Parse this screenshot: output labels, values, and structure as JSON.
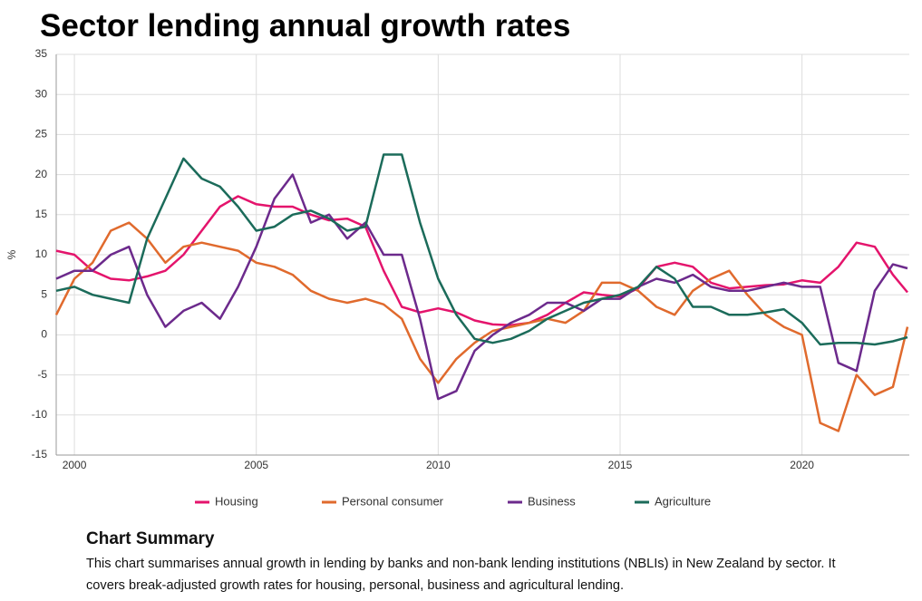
{
  "chart_data": {
    "type": "line",
    "title": "Sector lending annual growth rates",
    "ylabel": "%",
    "xlim": [
      1999.5,
      2022.95
    ],
    "xticks": [
      2000,
      2005,
      2010,
      2015,
      2020
    ],
    "ylim": [
      -15,
      35
    ],
    "yticks": [
      -15,
      -10,
      -5,
      0,
      5,
      10,
      15,
      20,
      25,
      30,
      35
    ],
    "grid": true,
    "legend": "bottom",
    "x": [
      1999.5,
      2000,
      2000.5,
      2001,
      2001.5,
      2002,
      2002.5,
      2003,
      2003.5,
      2004,
      2004.5,
      2005,
      2005.5,
      2006,
      2006.5,
      2007,
      2007.5,
      2008,
      2008.5,
      2009,
      2009.5,
      2010,
      2010.5,
      2011,
      2011.5,
      2012,
      2012.5,
      2013,
      2013.5,
      2014,
      2014.5,
      2015,
      2015.5,
      2016,
      2016.5,
      2017,
      2017.5,
      2018,
      2018.5,
      2019,
      2019.5,
      2020,
      2020.5,
      2021,
      2021.5,
      2022,
      2022.5,
      2022.9
    ],
    "series": [
      {
        "name": "Housing",
        "color": "#e4146c",
        "values": [
          10.5,
          10,
          8,
          7,
          6.8,
          7.3,
          8,
          10,
          13,
          16,
          17.3,
          16.3,
          16,
          16,
          15,
          14.3,
          14.5,
          13.5,
          8,
          3.5,
          2.8,
          3.3,
          2.8,
          1.8,
          1.3,
          1.2,
          1.5,
          2.5,
          4,
          5.3,
          5,
          4.8,
          5.8,
          8.5,
          9,
          8.5,
          6.5,
          5.8,
          6,
          6.2,
          6.3,
          6.8,
          6.5,
          8.5,
          11.5,
          11,
          7.5,
          5.3
        ]
      },
      {
        "name": "Personal consumer",
        "color": "#e06a2d",
        "values": [
          2.5,
          7,
          9,
          13,
          14,
          12,
          9,
          11,
          11.5,
          11,
          10.5,
          9,
          8.5,
          7.5,
          5.5,
          4.5,
          4,
          4.5,
          3.8,
          2,
          -3,
          -6,
          -3,
          -1,
          0.5,
          1,
          1.5,
          2,
          1.5,
          3,
          6.5,
          6.5,
          5.5,
          3.5,
          2.5,
          5.5,
          7,
          8,
          5,
          2.5,
          1,
          0,
          -11,
          -12,
          -5,
          -7.5,
          -6.5,
          1
        ]
      },
      {
        "name": "Business",
        "color": "#6c2a8c",
        "values": [
          7,
          8,
          8,
          10,
          11,
          5,
          1,
          3,
          4,
          2,
          6,
          11,
          17,
          20,
          14,
          15,
          12,
          14,
          10,
          10,
          2,
          -8,
          -7,
          -2,
          0,
          1.5,
          2.5,
          4,
          4,
          3,
          4.5,
          4.5,
          6,
          7,
          6.5,
          7.5,
          6,
          5.5,
          5.5,
          6,
          6.5,
          6,
          6,
          -3.5,
          -4.5,
          5.5,
          8.8,
          8.3
        ]
      },
      {
        "name": "Agriculture",
        "color": "#1b6b5a",
        "values": [
          5.5,
          6,
          5,
          4.5,
          4,
          12,
          17,
          22,
          19.5,
          18.5,
          16,
          13,
          13.5,
          15,
          15.5,
          14.5,
          13,
          13.5,
          22.5,
          22.5,
          14,
          7,
          2.5,
          -0.5,
          -1,
          -0.5,
          0.5,
          2,
          3,
          4,
          4.5,
          5,
          6,
          8.5,
          7,
          3.5,
          3.5,
          2.5,
          2.5,
          2.8,
          3.2,
          1.5,
          -1.2,
          -1,
          -1,
          -1.2,
          -0.8,
          -0.3
        ]
      }
    ]
  },
  "summary": {
    "heading": "Chart Summary",
    "text": "This chart summarises annual growth in lending by banks and non-bank lending institutions (NBLIs) in New Zealand by sector. It covers break-adjusted growth rates for housing, personal, business and agricultural lending."
  }
}
